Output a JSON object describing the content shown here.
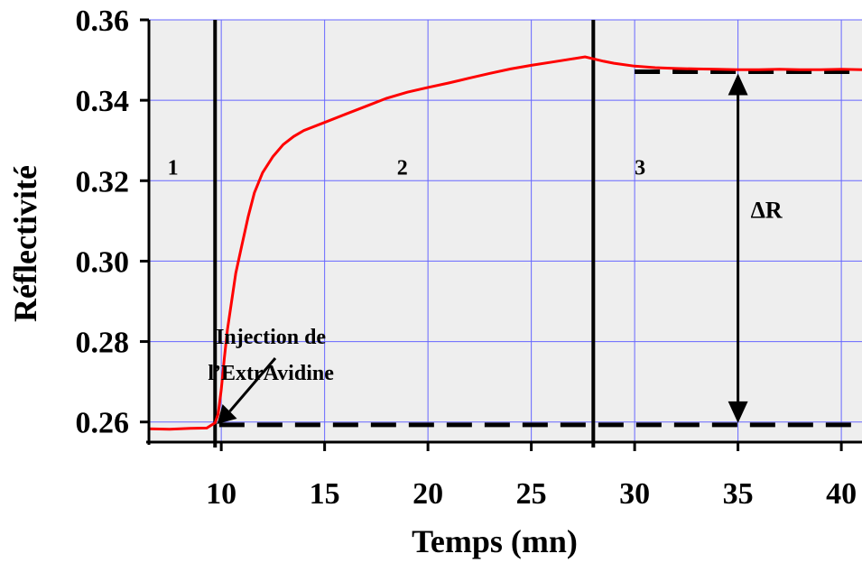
{
  "chart_data": {
    "type": "line",
    "title": "",
    "xlabel": "Temps (mn)",
    "ylabel": "Réflectivité",
    "xlim": [
      6.5,
      41
    ],
    "ylim": [
      0.255,
      0.36
    ],
    "xticks": [
      10,
      15,
      20,
      25,
      30,
      35,
      40
    ],
    "yticks": [
      0.26,
      0.28,
      0.3,
      0.32,
      0.34,
      0.36
    ],
    "xtick_labels": [
      "10",
      "15",
      "20",
      "25",
      "30",
      "35",
      "40"
    ],
    "ytick_labels": [
      "0.26",
      "0.28",
      "0.30",
      "0.32",
      "0.34",
      "0.36"
    ],
    "grid": true,
    "series": [
      {
        "color": "#ff0000",
        "x": [
          6.5,
          7.5,
          8.5,
          9.3,
          9.7,
          9.85,
          10.0,
          10.15,
          10.3,
          10.5,
          10.7,
          11.0,
          11.3,
          11.6,
          12.0,
          12.5,
          13.0,
          13.5,
          14.0,
          15.0,
          16.0,
          17.0,
          18.0,
          19.0,
          20.0,
          21.0,
          22.0,
          23.0,
          24.0,
          25.0,
          26.0,
          27.0,
          27.6,
          28.0,
          28.5,
          29.0,
          30.0,
          31.0,
          32.0,
          33.0,
          34.0,
          35.0,
          36.0,
          37.0,
          38.0,
          39.0,
          40.0,
          41.0
        ],
        "y": [
          0.2583,
          0.2582,
          0.2584,
          0.2585,
          0.2598,
          0.262,
          0.268,
          0.276,
          0.283,
          0.29,
          0.297,
          0.304,
          0.311,
          0.317,
          0.322,
          0.326,
          0.329,
          0.331,
          0.3325,
          0.3345,
          0.3365,
          0.3385,
          0.3405,
          0.342,
          0.3432,
          0.3443,
          0.3455,
          0.3467,
          0.3478,
          0.3487,
          0.3495,
          0.3503,
          0.3508,
          0.3503,
          0.3497,
          0.3492,
          0.3485,
          0.3481,
          0.3479,
          0.3478,
          0.3477,
          0.3476,
          0.3476,
          0.3477,
          0.3476,
          0.3476,
          0.3477,
          0.3476
        ]
      }
    ],
    "vertical_lines": [
      9.7,
      28.0
    ],
    "baseline_initial": 0.2593,
    "baseline_final": 0.3471,
    "dashed_x_ranges": [
      [
        9.9,
        40.5
      ],
      [
        30.0,
        41.0
      ]
    ],
    "regions": [
      {
        "label": "1",
        "x": 7.4,
        "y": 0.3215
      },
      {
        "label": "2",
        "x": 18.5,
        "y": 0.3215
      },
      {
        "label": "3",
        "x": 30.0,
        "y": 0.3215
      }
    ],
    "annotations": [
      {
        "text_lines": [
          "Injection de",
          "l’ExtrAvidine"
        ],
        "arrow_to": [
          9.8,
          0.2595
        ],
        "text_at": [
          12.4,
          0.2795
        ]
      },
      {
        "text": "ΔR",
        "arrow_x": 35.0
      }
    ]
  }
}
